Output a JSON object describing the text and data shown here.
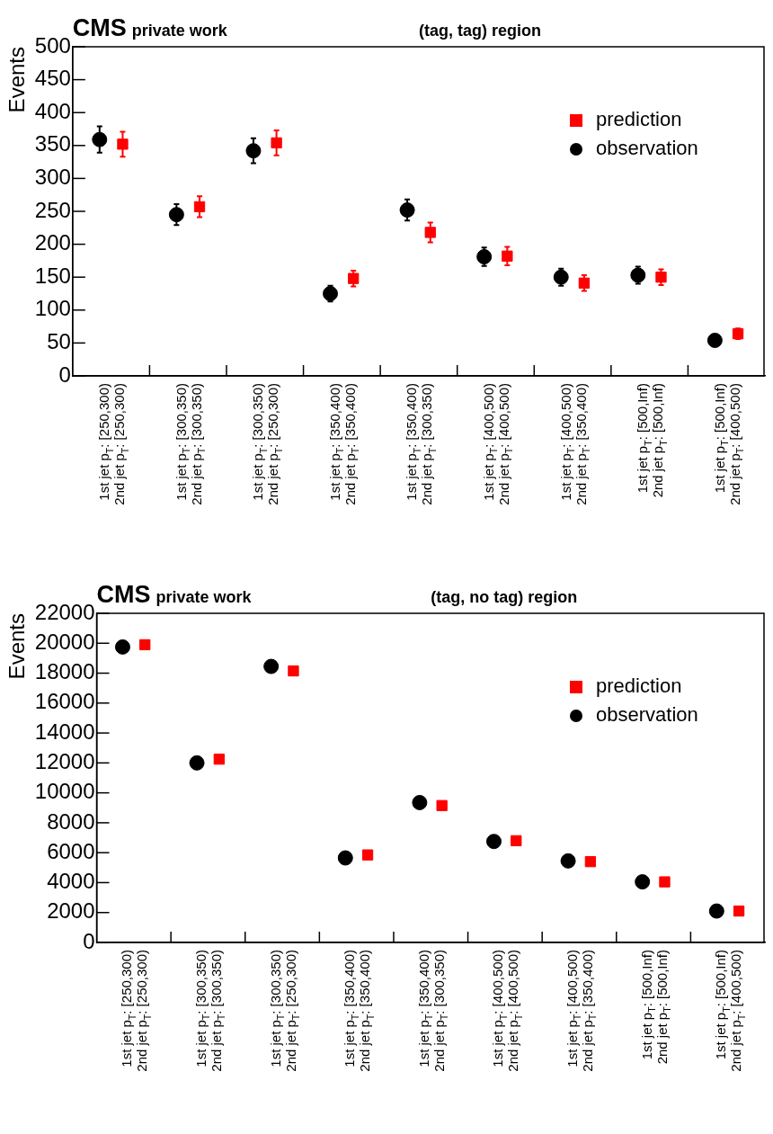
{
  "chart_data": [
    {
      "type": "scatter",
      "title": "CMS",
      "subtitle": "private work",
      "annotations": [
        "(tag, tag) region"
      ],
      "ylabel": "Events",
      "categories": [
        "1st jet p$_{T}$: [250,300)\n2nd jet p$_{T}$: [250,300)",
        "1st jet p$_{T}$: [300,350)\n2nd jet p$_{T}$: [300,350)",
        "1st jet p$_{T}$: [300,350)\n2nd jet p$_{T}$: [250,300)",
        "1st jet p$_{T}$: [350,400)\n2nd jet p$_{T}$: [350,400)",
        "1st jet p$_{T}$: [350,400)\n2nd jet p$_{T}$: [300,350)",
        "1st jet p$_{T}$: [400,500)\n2nd jet p$_{T}$: [400,500)",
        "1st jet p$_{T}$: [400,500)\n2nd jet p$_{T}$: [350,400)",
        "1st jet p$_{T}$: [500,Inf)\n2nd jet p$_{T}$: [500,Inf)",
        "1st jet p$_{T}$: [500,Inf)\n2nd jet p$_{T}$: [400,500)"
      ],
      "series": [
        {
          "name": "prediction",
          "color": "#ff0000",
          "marker": "square",
          "values": [
            352,
            257,
            354,
            148,
            218,
            182,
            141,
            150,
            64
          ],
          "errors": [
            19,
            16,
            19,
            12,
            15,
            14,
            12,
            12,
            8
          ]
        },
        {
          "name": "observation",
          "color": "#000000",
          "marker": "circle",
          "values": [
            359,
            245,
            342,
            125,
            252,
            181,
            150,
            153,
            54
          ],
          "errors": [
            20,
            16,
            19,
            12,
            16,
            14,
            13,
            13,
            7
          ]
        }
      ],
      "ylim": [
        0,
        500
      ],
      "yticks": [
        0,
        50,
        100,
        150,
        200,
        250,
        300,
        350,
        400,
        450,
        500
      ],
      "legend": "top right",
      "grid": false
    },
    {
      "type": "scatter",
      "title": "CMS",
      "subtitle": "private work",
      "annotations": [
        "(tag, no tag) region"
      ],
      "ylabel": "Events",
      "categories": [
        "1st jet p$_{T}$: [250,300)\n2nd jet p$_{T}$: [250,300)",
        "1st jet p$_{T}$: [300,350)\n2nd jet p$_{T}$: [300,350)",
        "1st jet p$_{T}$: [300,350)\n2nd jet p$_{T}$: [250,300)",
        "1st jet p$_{T}$: [350,400)\n2nd jet p$_{T}$: [350,400)",
        "1st jet p$_{T}$: [350,400)\n2nd jet p$_{T}$: [300,350)",
        "1st jet p$_{T}$: [400,500)\n2nd jet p$_{T}$: [400,500)",
        "1st jet p$_{T}$: [400,500)\n2nd jet p$_{T}$: [350,400)",
        "1st jet p$_{T}$: [500,Inf)\n2nd jet p$_{T}$: [500,Inf)",
        "1st jet p$_{T}$: [500,Inf)\n2nd jet p$_{T}$: [400,500)"
      ],
      "series": [
        {
          "name": "prediction",
          "color": "#ff0000",
          "marker": "square",
          "values": [
            19900,
            12250,
            18150,
            5850,
            9150,
            6800,
            5400,
            4050,
            2100
          ]
        },
        {
          "name": "observation",
          "color": "#000000",
          "marker": "circle",
          "values": [
            19750,
            12000,
            18450,
            5650,
            9350,
            6750,
            5450,
            4050,
            2100
          ]
        }
      ],
      "ylim": [
        0,
        22000
      ],
      "yticks": [
        0,
        2000,
        4000,
        6000,
        8000,
        10000,
        12000,
        14000,
        16000,
        18000,
        20000,
        22000
      ],
      "legend": "top right",
      "grid": false
    }
  ]
}
